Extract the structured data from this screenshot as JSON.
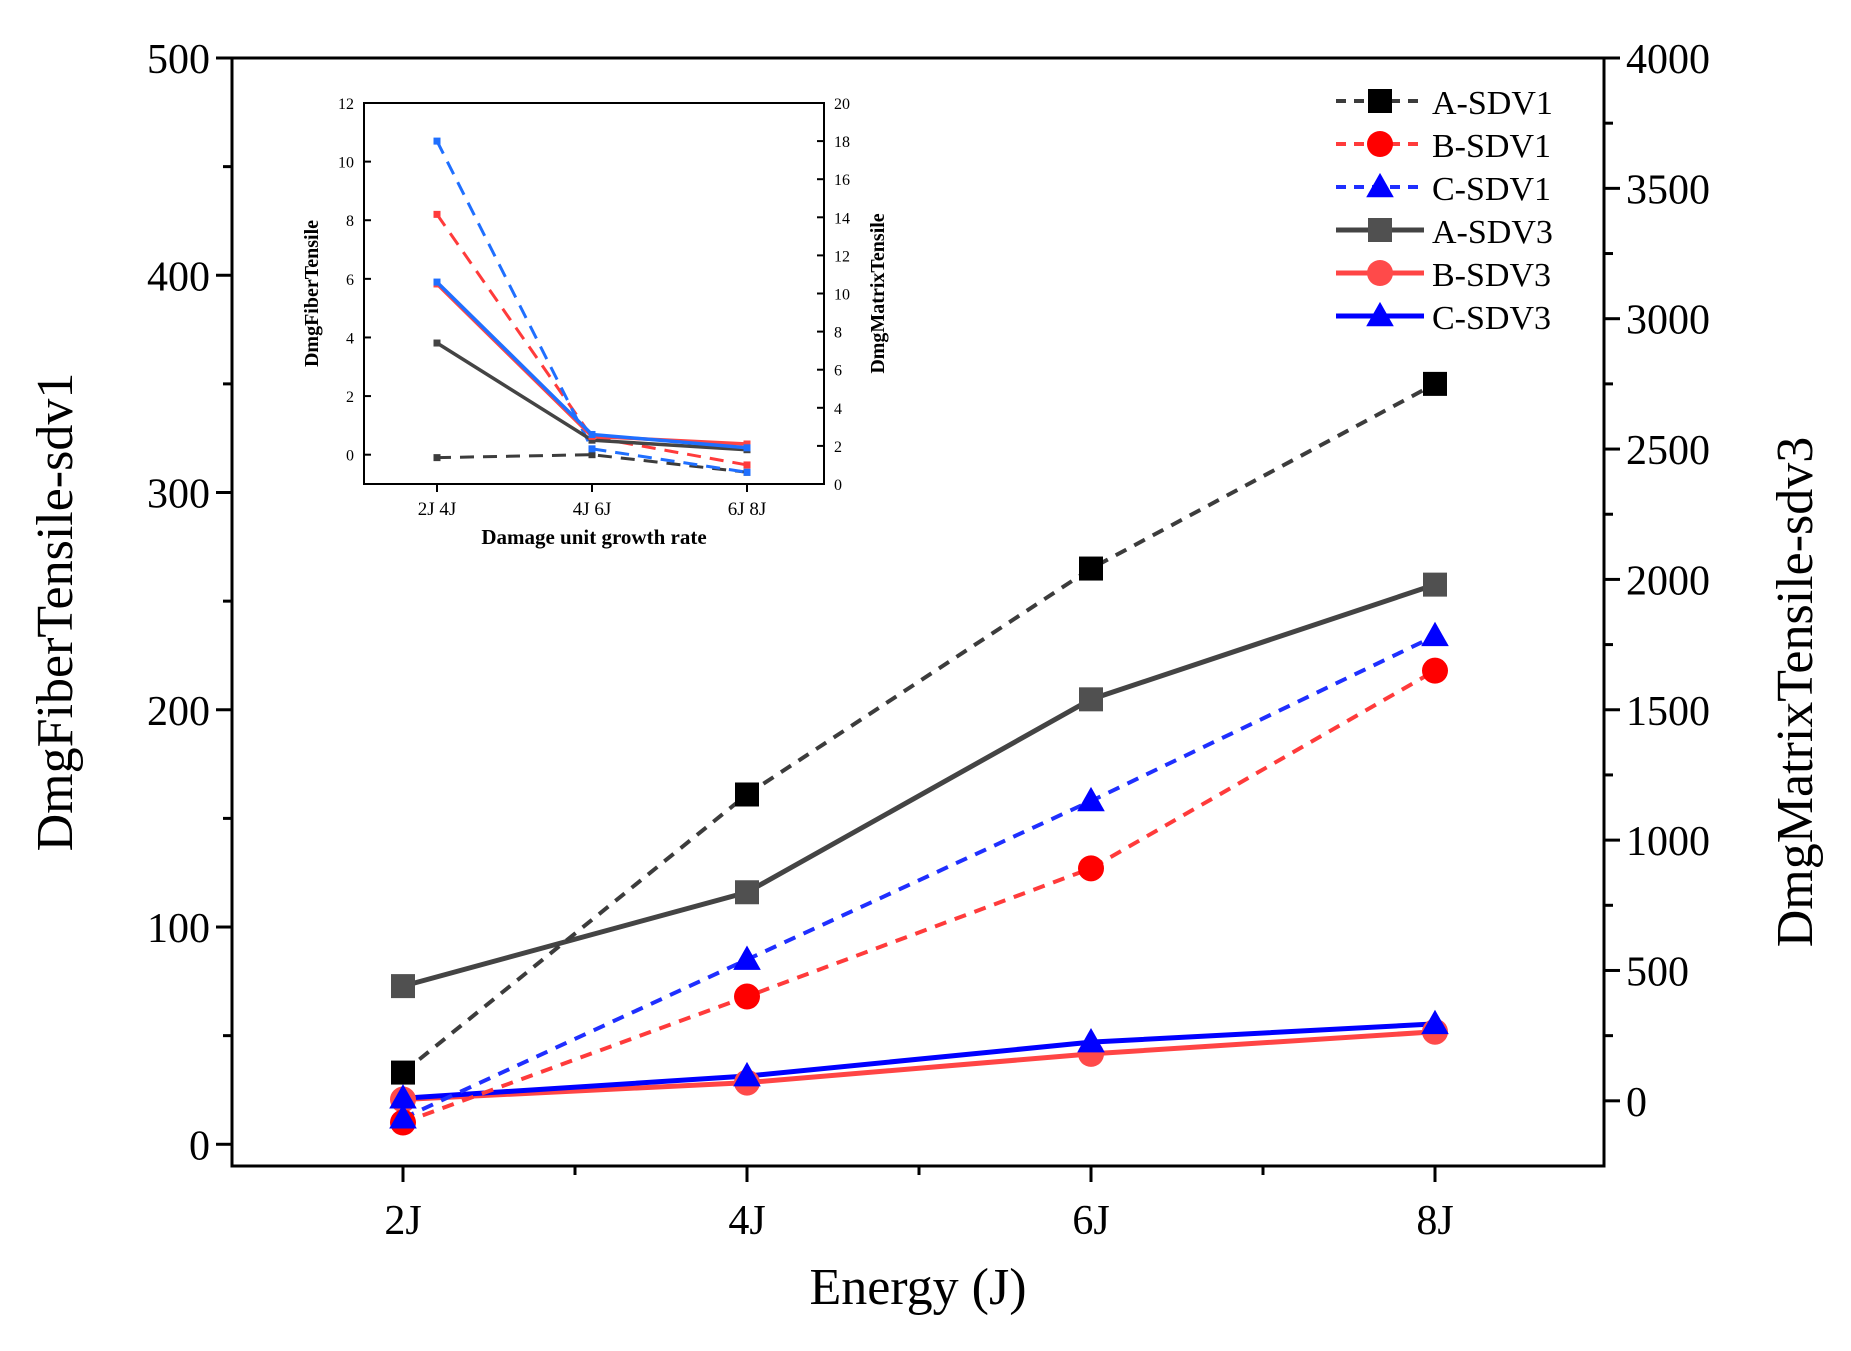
{
  "chart_data": [
    {
      "id": "main",
      "type": "line",
      "xlabel": "Energy (J)",
      "ylabel": "DmgFiberTensile-sdv1",
      "y2label": "DmgMatrixTensile-sdv3",
      "categories": [
        "2J",
        "4J",
        "6J",
        "8J"
      ],
      "ylim": [
        -10,
        500
      ],
      "y2lim": [
        -250,
        4000
      ],
      "yticks": [
        0,
        100,
        200,
        300,
        400,
        500
      ],
      "y2ticks": [
        0,
        500,
        1000,
        1500,
        2000,
        2500,
        3000,
        3500,
        4000
      ],
      "series": [
        {
          "name": "A-SDV1",
          "axis": "left",
          "values": [
            33,
            161,
            265,
            350
          ],
          "color": "#3c3c3c",
          "marker": "#000000",
          "shape": "square",
          "dash": true
        },
        {
          "name": "B-SDV1",
          "axis": "left",
          "values": [
            10,
            68,
            127,
            218
          ],
          "color": "#ff3b3b",
          "marker": "#ff0000",
          "shape": "circle",
          "dash": true
        },
        {
          "name": "C-SDV1",
          "axis": "left",
          "values": [
            12,
            85,
            158,
            234
          ],
          "color": "#1f2fff",
          "marker": "#0000ff",
          "shape": "triangle",
          "dash": true
        },
        {
          "name": "A-SDV3",
          "axis": "right",
          "values": [
            440,
            800,
            1540,
            1980
          ],
          "color": "#444444",
          "marker": "#505050",
          "shape": "square",
          "dash": false
        },
        {
          "name": "B-SDV3",
          "axis": "right",
          "values": [
            5,
            70,
            180,
            265
          ],
          "color": "#ff4545",
          "marker": "#ff4a4a",
          "shape": "circle",
          "dash": false
        },
        {
          "name": "C-SDV3",
          "axis": "right",
          "values": [
            10,
            95,
            225,
            295
          ],
          "color": "#0000ff",
          "marker": "#0000ff",
          "shape": "triangle",
          "dash": false
        }
      ],
      "legend": "top-right"
    },
    {
      "id": "inset",
      "type": "line",
      "xlabel": "Damage unit growth rate",
      "ylabel": "DmgFiberTensile",
      "y2label": "DmgMatrixTensile",
      "categories": [
        "2J 4J",
        "4J 6J",
        "6J 8J"
      ],
      "ylim": [
        -1,
        12
      ],
      "y2lim": [
        0,
        20
      ],
      "yticks": [
        0,
        2,
        4,
        6,
        8,
        10,
        12
      ],
      "y2ticks": [
        0,
        2,
        4,
        6,
        8,
        10,
        12,
        14,
        16,
        18,
        20
      ],
      "series": [
        {
          "name": "A-SDV1",
          "axis": "left",
          "values": [
            -0.1,
            0.0,
            -0.6
          ],
          "color": "#3c3c3c",
          "dash": true
        },
        {
          "name": "B-SDV1",
          "axis": "left",
          "values": [
            8.2,
            0.6,
            -0.35
          ],
          "color": "#ff3b3b",
          "dash": true
        },
        {
          "name": "C-SDV1",
          "axis": "left",
          "values": [
            10.7,
            0.2,
            -0.6
          ],
          "color": "#1f6fff",
          "dash": true
        },
        {
          "name": "A-SDV3",
          "axis": "right",
          "values": [
            7.4,
            2.3,
            1.8
          ],
          "color": "#444444",
          "dash": false
        },
        {
          "name": "B-SDV3",
          "axis": "right",
          "values": [
            10.5,
            2.5,
            2.1
          ],
          "color": "#ff4545",
          "dash": false
        },
        {
          "name": "C-SDV3",
          "axis": "right",
          "values": [
            10.6,
            2.6,
            1.9
          ],
          "color": "#1f6fff",
          "dash": false
        }
      ]
    }
  ]
}
